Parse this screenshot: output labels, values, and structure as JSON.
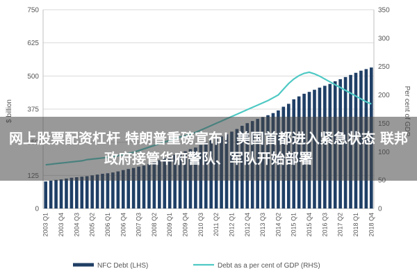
{
  "headline": "网上股票配资杠杆 特朗普重磅宣布！美国首都进入紧急状态 联邦政府接管华府警队、军队开始部署",
  "colors": {
    "bar": "#1f3f66",
    "line": "#4fc9c4",
    "grid": "#d9d9d9",
    "overlay": "#464646"
  },
  "chart_data": {
    "type": "bar",
    "categories": [
      "2003 Q1",
      "2003 Q4",
      "2004 Q3",
      "2005 Q2",
      "2006 Q1",
      "2006 Q4",
      "2007 Q3",
      "2008 Q2",
      "2009 Q1",
      "2009 Q4",
      "2010 Q3",
      "2011 Q2",
      "2012 Q1",
      "2012 Q4",
      "2013 Q3",
      "2014 Q2",
      "2015 Q1",
      "2015 Q4",
      "2016 Q3",
      "2017 Q2",
      "2018 Q1",
      "2018 Q4"
    ],
    "ylabel_left": "$ billion",
    "ylabel_right": "Per cent of GDP",
    "ylim_left": [
      0,
      750
    ],
    "ylim_right": [
      0,
      350
    ],
    "yticks_left": [
      0,
      125,
      250,
      375,
      500,
      625,
      750
    ],
    "yticks_right": [
      0,
      50,
      100,
      150,
      200,
      250,
      300,
      350
    ],
    "legend": {
      "bar": "NFC Debt (LHS)",
      "line": "Debt as a per cent of GDP (RHS)"
    },
    "legend_position": "bottom",
    "grid": true,
    "series": [
      {
        "name": "NFC Debt (LHS)",
        "axis": "left",
        "type": "bar",
        "x": [
          "2003 Q1",
          "2003 Q2",
          "2003 Q3",
          "2003 Q4",
          "2004 Q1",
          "2004 Q2",
          "2004 Q3",
          "2004 Q4",
          "2005 Q1",
          "2005 Q2",
          "2005 Q3",
          "2005 Q4",
          "2006 Q1",
          "2006 Q2",
          "2006 Q3",
          "2006 Q4",
          "2007 Q1",
          "2007 Q2",
          "2007 Q3",
          "2007 Q4",
          "2008 Q1",
          "2008 Q2",
          "2008 Q3",
          "2008 Q4",
          "2009 Q1",
          "2009 Q2",
          "2009 Q3",
          "2009 Q4",
          "2010 Q1",
          "2010 Q2",
          "2010 Q3",
          "2010 Q4",
          "2011 Q1",
          "2011 Q2",
          "2011 Q3",
          "2011 Q4",
          "2012 Q1",
          "2012 Q2",
          "2012 Q3",
          "2012 Q4",
          "2013 Q1",
          "2013 Q2",
          "2013 Q3",
          "2013 Q4",
          "2014 Q1",
          "2014 Q2",
          "2014 Q3",
          "2014 Q4",
          "2015 Q1",
          "2015 Q2",
          "2015 Q3",
          "2015 Q4",
          "2016 Q1",
          "2016 Q2",
          "2016 Q3",
          "2016 Q4",
          "2017 Q1",
          "2017 Q2",
          "2017 Q3",
          "2017 Q4",
          "2018 Q1",
          "2018 Q2",
          "2018 Q3",
          "2018 Q4"
        ],
        "values": [
          102,
          105,
          108,
          110,
          113,
          116,
          118,
          120,
          122,
          125,
          128,
          131,
          133,
          136,
          140,
          145,
          149,
          153,
          158,
          162,
          168,
          174,
          182,
          190,
          196,
          203,
          210,
          216,
          224,
          230,
          240,
          250,
          258,
          264,
          272,
          280,
          290,
          300,
          312,
          322,
          330,
          338,
          345,
          352,
          360,
          370,
          384,
          395,
          412,
          423,
          433,
          440,
          448,
          456,
          463,
          470,
          480,
          488,
          496,
          504,
          512,
          520,
          526,
          532
        ]
      },
      {
        "name": "Debt as a per cent of GDP (RHS)",
        "axis": "right",
        "type": "line",
        "x": [
          "2003 Q1",
          "2003 Q2",
          "2003 Q3",
          "2003 Q4",
          "2004 Q1",
          "2004 Q2",
          "2004 Q3",
          "2004 Q4",
          "2005 Q1",
          "2005 Q2",
          "2005 Q3",
          "2005 Q4",
          "2006 Q1",
          "2006 Q2",
          "2006 Q3",
          "2006 Q4",
          "2007 Q1",
          "2007 Q2",
          "2007 Q3",
          "2007 Q4",
          "2008 Q1",
          "2008 Q2",
          "2008 Q3",
          "2008 Q4",
          "2009 Q1",
          "2009 Q2",
          "2009 Q3",
          "2009 Q4",
          "2010 Q1",
          "2010 Q2",
          "2010 Q3",
          "2010 Q4",
          "2011 Q1",
          "2011 Q2",
          "2011 Q3",
          "2011 Q4",
          "2012 Q1",
          "2012 Q2",
          "2012 Q3",
          "2012 Q4",
          "2013 Q1",
          "2013 Q2",
          "2013 Q3",
          "2013 Q4",
          "2014 Q1",
          "2014 Q2",
          "2014 Q3",
          "2014 Q4",
          "2015 Q1",
          "2015 Q2",
          "2015 Q3",
          "2015 Q4",
          "2016 Q1",
          "2016 Q2",
          "2016 Q3",
          "2016 Q4",
          "2017 Q1",
          "2017 Q2",
          "2017 Q3",
          "2017 Q4",
          "2018 Q1",
          "2018 Q2",
          "2018 Q3",
          "2018 Q4"
        ],
        "values": [
          77,
          78,
          79,
          80,
          81,
          82,
          83,
          84,
          86,
          87,
          88,
          89,
          90,
          91,
          93,
          95,
          97,
          99,
          102,
          105,
          108,
          111,
          114,
          117,
          120,
          123,
          126,
          128,
          131,
          134,
          138,
          142,
          146,
          150,
          154,
          158,
          162,
          166,
          170,
          174,
          178,
          182,
          186,
          190,
          195,
          200,
          210,
          220,
          228,
          234,
          238,
          240,
          237,
          233,
          228,
          223,
          218,
          213,
          208,
          203,
          198,
          193,
          188,
          184
        ]
      }
    ]
  }
}
